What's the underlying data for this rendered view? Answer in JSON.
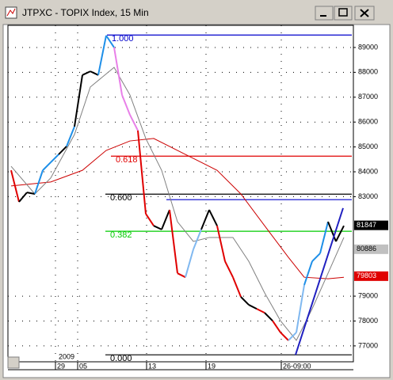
{
  "window": {
    "title": "JTPXC - TOPIX Index, 15 Min"
  },
  "chart_data": {
    "type": "line",
    "xlim": [
      -0.4,
      43.2
    ],
    "ylim": [
      76360,
      89890
    ],
    "yticks": [
      77000,
      78000,
      79000,
      83000,
      84000,
      85000,
      86000,
      87000,
      88000,
      89000
    ],
    "xticks": [
      {
        "value": 5.6,
        "label": "29"
      },
      {
        "value": 8.4,
        "label": "05"
      },
      {
        "value": 17.1,
        "label": "13"
      },
      {
        "value": 24.6,
        "label": "19"
      },
      {
        "value": 34.1,
        "label": "26-09:00"
      }
    ],
    "year_label": "2009",
    "grid": true,
    "series": [
      {
        "color": "#000000",
        "x": [
          0,
          1,
          2,
          3,
          4,
          5,
          6,
          7,
          8,
          9,
          10,
          11,
          12,
          13,
          14,
          15,
          16,
          17,
          18,
          19,
          20,
          21,
          22,
          23,
          24,
          25,
          26,
          27,
          28,
          29,
          30,
          31,
          32,
          33,
          34,
          35,
          36,
          37,
          38,
          39,
          40,
          41,
          42
        ],
        "values": [
          84060,
          82790,
          83170,
          83110,
          84060,
          84380,
          84700,
          85020,
          85820,
          87890,
          88040,
          87890,
          89480,
          89000,
          87090,
          86290,
          85660,
          82310,
          81830,
          81680,
          82470,
          79920,
          79760,
          80880,
          81680,
          82470,
          81830,
          80400,
          79760,
          78970,
          78650,
          78490,
          78330,
          78010,
          77540,
          77220,
          77540,
          79450,
          80400,
          80720,
          81990,
          81200,
          81830
        ],
        "point_colors": [
          "#e880e8",
          "#e00000",
          "#000000",
          "#000000",
          "#1e8fe8",
          "#1e8fe8",
          "#1e8fe8",
          "#000000",
          "#1e8fe8",
          "#000000",
          "#000000",
          "#000000",
          "#1e8fe8",
          "#1e8fe8",
          "#e880e8",
          "#e880e8",
          "#e880e8",
          "#e00000",
          "#e00000",
          "#000000",
          "#000000",
          "#e00000",
          "#e00000",
          "#80b8f0",
          "#80b8f0",
          "#000000",
          "#000000",
          "#e00000",
          "#e00000",
          "#e00000",
          "#000000",
          "#000000",
          "#e00000",
          "#000000",
          "#e00000",
          "#e00000",
          "#80b8f0",
          "#80b8f0",
          "#1e8fe8",
          "#1e8fe8",
          "#1e8fe8",
          "#000000",
          "#000000"
        ]
      },
      {
        "color": "#808080",
        "x": [
          0,
          3,
          5,
          8,
          10,
          13,
          15,
          17,
          19,
          21,
          23,
          25,
          28,
          30,
          32,
          34,
          36,
          38,
          40,
          42
        ],
        "values": [
          84220,
          83110,
          83750,
          85500,
          87410,
          88200,
          87090,
          85340,
          84060,
          81990,
          81200,
          81360,
          81360,
          80400,
          79130,
          78010,
          77220,
          78490,
          79920,
          81360
        ]
      },
      {
        "color": "#cc0000",
        "x": [
          0,
          5,
          9,
          12,
          15,
          18,
          22,
          26,
          29,
          32,
          35,
          37,
          40,
          42
        ],
        "values": [
          83430,
          83590,
          84060,
          84860,
          85240,
          85340,
          84700,
          84060,
          83110,
          81830,
          80560,
          79760,
          79700,
          79760
        ]
      }
    ],
    "fib_levels": [
      {
        "label": "1.000",
        "value": 89500,
        "from": 12.1,
        "color": "#0000cc"
      },
      {
        "label": "0.618",
        "value": 84630,
        "from": 12.6,
        "color": "#e00000"
      },
      {
        "label": "0.600",
        "value": 83100,
        "from": 11.9,
        "color": "#000000"
      },
      {
        "label": "0.382",
        "value": 81610,
        "from": 11.9,
        "color": "#00cc00"
      },
      {
        "label": "0.000",
        "value": 76640,
        "from": 11.9,
        "color": "#000000"
      }
    ],
    "lines": [
      {
        "value": 82880,
        "from": 19.6,
        "color": "#0000cc"
      }
    ],
    "trend_line": {
      "x": [
        35.9,
        41.9
      ],
      "values": [
        76640,
        82540
      ],
      "color": "#2020c0"
    },
    "price_markers": [
      {
        "value": 81847,
        "label": "81847",
        "color": "#000000",
        "text_color": "#ffffff"
      },
      {
        "value": 80886,
        "label": "80886",
        "color": "#c0c0c0",
        "text_color": "#000000"
      },
      {
        "value": 79803,
        "label": "79803",
        "color": "#e00000",
        "text_color": "#ffffff"
      }
    ]
  }
}
